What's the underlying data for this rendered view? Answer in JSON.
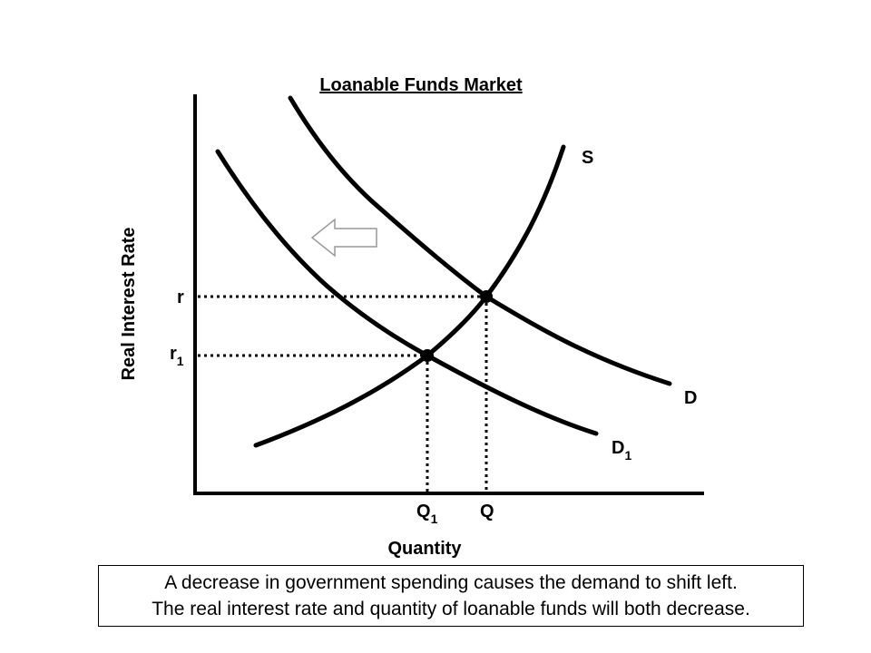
{
  "title": "Loanable Funds Market",
  "y_axis_label": "Real Interest Rate",
  "x_axis_label": "Quantity",
  "curves": {
    "supply": "S",
    "demand": "D",
    "demand_new": {
      "base": "D",
      "sub": "1"
    }
  },
  "price_labels": {
    "original": "r",
    "new": {
      "base": "r",
      "sub": "1"
    }
  },
  "quantity_labels": {
    "original": "Q",
    "new": {
      "base": "Q",
      "sub": "1"
    }
  },
  "shift_arrow": "left-arrow-icon",
  "caption": {
    "line1": "A decrease in government spending causes the demand to shift left.",
    "line2": "The real interest rate and quantity of loanable funds will both decrease."
  }
}
